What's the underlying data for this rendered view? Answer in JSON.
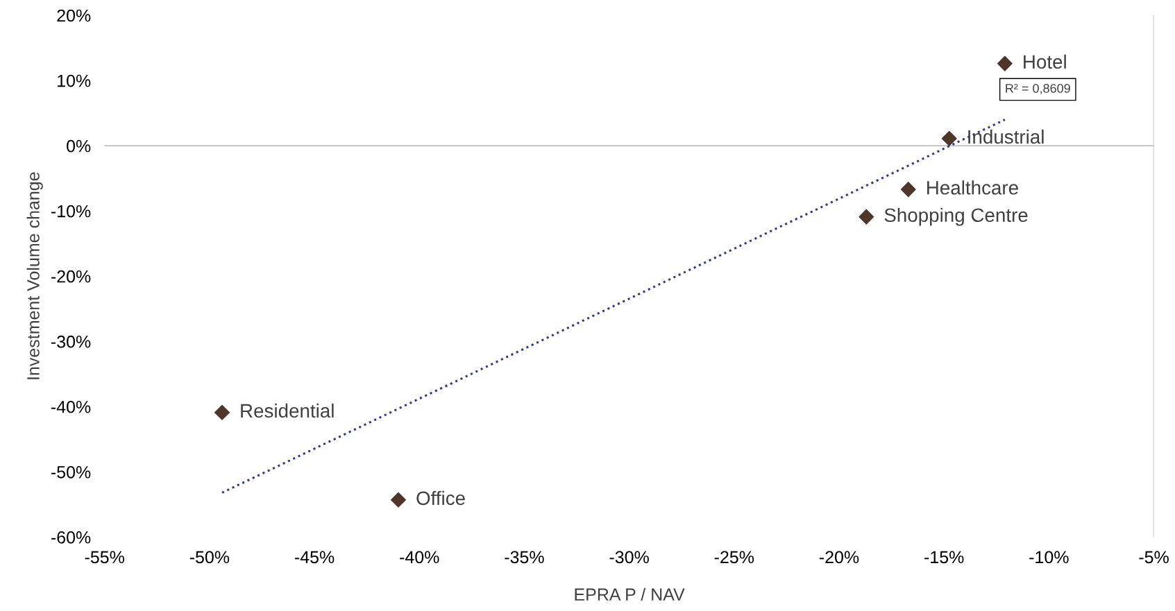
{
  "chart_data": {
    "type": "scatter",
    "xlabel": "EPRA P / NAV",
    "ylabel": "Investment Volume change",
    "xlim": [
      -55,
      -5
    ],
    "ylim": [
      -60,
      20
    ],
    "xticks": [
      {
        "value": -55,
        "label": "-55%"
      },
      {
        "value": -50,
        "label": "-50%"
      },
      {
        "value": -45,
        "label": "-45%"
      },
      {
        "value": -40,
        "label": "-40%"
      },
      {
        "value": -35,
        "label": "-35%"
      },
      {
        "value": -30,
        "label": "-30%"
      },
      {
        "value": -25,
        "label": "-25%"
      },
      {
        "value": -20,
        "label": "-20%"
      },
      {
        "value": -15,
        "label": "-15%"
      },
      {
        "value": -10,
        "label": "-10%"
      },
      {
        "value": -5,
        "label": "-5%"
      }
    ],
    "yticks": [
      {
        "value": -60,
        "label": "-60%"
      },
      {
        "value": -50,
        "label": "-50%"
      },
      {
        "value": -40,
        "label": "-40%"
      },
      {
        "value": -30,
        "label": "-30%"
      },
      {
        "value": -20,
        "label": "-20%"
      },
      {
        "value": -10,
        "label": "-10%"
      },
      {
        "value": 0,
        "label": "0%"
      },
      {
        "value": 10,
        "label": "10%"
      },
      {
        "value": 20,
        "label": "20%"
      }
    ],
    "series": [
      {
        "color": "#4e3629",
        "marker": "diamond",
        "x": [
          -12.1,
          -14.75,
          -16.7,
          -18.7,
          -49.4,
          -41.0
        ],
        "values": [
          12.6,
          1.1,
          -6.7,
          -10.9,
          -40.9,
          -54.3
        ]
      },
      {
        "type": "line",
        "color": "#2e3a87",
        "line_style": "dotted",
        "marker": "none",
        "x": [
          -49.4,
          -12.1
        ],
        "values": [
          -53.2,
          4.0
        ]
      }
    ],
    "annotations": [
      {
        "text": "Hotel",
        "x": -12.1,
        "y": 12.6
      },
      {
        "text": "Industrial",
        "x": -14.75,
        "y": 1.1
      },
      {
        "text": "Healthcare",
        "x": -16.7,
        "y": -6.7
      },
      {
        "text": "Shopping Centre",
        "x": -18.7,
        "y": -10.9
      },
      {
        "text": "Residential",
        "x": -49.4,
        "y": -40.9
      },
      {
        "text": "Office",
        "x": -41.0,
        "y": -54.3
      },
      {
        "text": "R² = 0,8609",
        "x": -12.1,
        "y": 4.0
      }
    ]
  }
}
